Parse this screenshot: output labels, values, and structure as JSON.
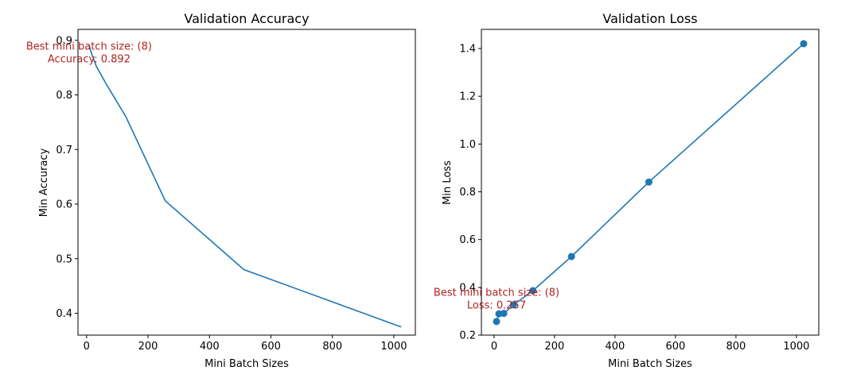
{
  "chart_data": [
    {
      "type": "line",
      "title": "Validation Accuracy",
      "xlabel": "Mini Batch Sizes",
      "ylabel": "Min Accuracy",
      "xlim": [
        -28,
        1070
      ],
      "ylim": [
        0.36,
        0.92
      ],
      "xticks": [
        0,
        200,
        400,
        600,
        800,
        1000
      ],
      "yticks": [
        0.4,
        0.5,
        0.6,
        0.7,
        0.8,
        0.9
      ],
      "ytick_labels": [
        "0.4",
        "0.5",
        "0.6",
        "0.7",
        "0.8",
        "0.9"
      ],
      "markers": false,
      "series": [
        {
          "x": [
            8,
            16,
            32,
            64,
            128,
            256,
            512,
            1024
          ],
          "y": [
            0.892,
            0.876,
            0.852,
            0.82,
            0.76,
            0.606,
            0.48,
            0.375
          ]
        }
      ],
      "annotation": {
        "lines": [
          "Best mini batch size: (8)",
          "Accuracy: 0.892"
        ],
        "x": 8,
        "y": 0.892
      }
    },
    {
      "type": "line",
      "title": "Validation Loss",
      "xlabel": "Mini Batch Sizes",
      "ylabel": "Min Loss",
      "xlim": [
        -42,
        1074
      ],
      "ylim": [
        0.2,
        1.48
      ],
      "xticks": [
        0,
        200,
        400,
        600,
        800,
        1000
      ],
      "yticks": [
        0.2,
        0.4,
        0.6,
        0.8,
        1.0,
        1.2,
        1.4
      ],
      "ytick_labels": [
        "0.2",
        "0.4",
        "0.6",
        "0.8",
        "1.0",
        "1.2",
        "1.4"
      ],
      "markers": true,
      "series": [
        {
          "x": [
            8,
            16,
            32,
            64,
            128,
            256,
            512,
            1024
          ],
          "y": [
            0.257,
            0.289,
            0.291,
            0.327,
            0.386,
            0.529,
            0.841,
            1.42
          ]
        }
      ],
      "annotation": {
        "lines": [
          "Best mini batch size: (8)",
          "Loss: 0.257"
        ],
        "x": 8,
        "y": 0.385
      }
    }
  ]
}
